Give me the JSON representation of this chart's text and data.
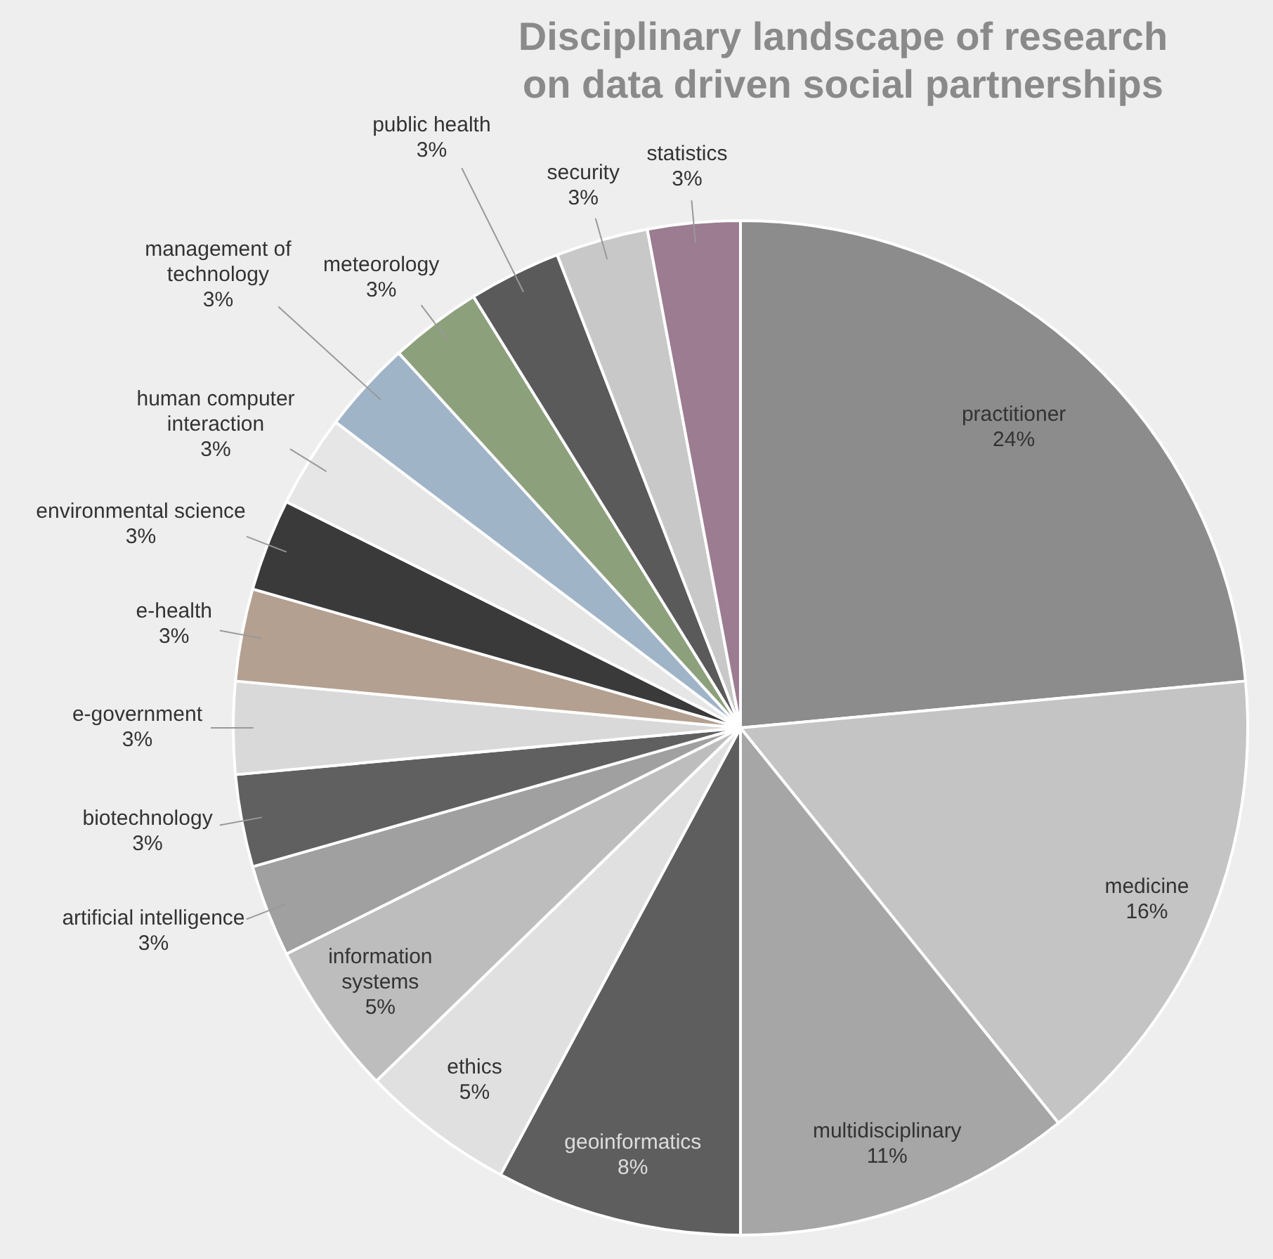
{
  "chart_data": {
    "type": "pie",
    "title": "Disciplinary landscape of research on data driven social partnerships",
    "categories": [
      "practitioner",
      "medicine",
      "multidisciplinary",
      "geoinformatics",
      "ethics",
      "information\nsystems",
      "artificial intelligence",
      "biotechnology",
      "e-government",
      "e-health",
      "environmental science",
      "human computer\ninteraction",
      "management of\ntechnology",
      "meteorology",
      "public health",
      "security",
      "statistics"
    ],
    "values": [
      24,
      16,
      11,
      8,
      5,
      5,
      3,
      3,
      3,
      3,
      3,
      3,
      3,
      3,
      3,
      3,
      3
    ],
    "value_labels": [
      "24%",
      "16%",
      "11%",
      "8%",
      "5%",
      "5%",
      "3%",
      "3%",
      "3%",
      "3%",
      "3%",
      "3%",
      "3%",
      "3%",
      "3%",
      "3%",
      "3%"
    ],
    "colors": [
      "#8c8c8c",
      "#c4c4c4",
      "#a6a6a6",
      "#5e5e5e",
      "#e0e0e0",
      "#bdbdbd",
      "#a0a0a0",
      "#606060",
      "#d9d9d9",
      "#b4a090",
      "#3a3a3a",
      "#e6e6e6",
      "#a0b4c8",
      "#8ca07c",
      "#5a5a5a",
      "#c8c8c8",
      "#9c7c90"
    ]
  }
}
